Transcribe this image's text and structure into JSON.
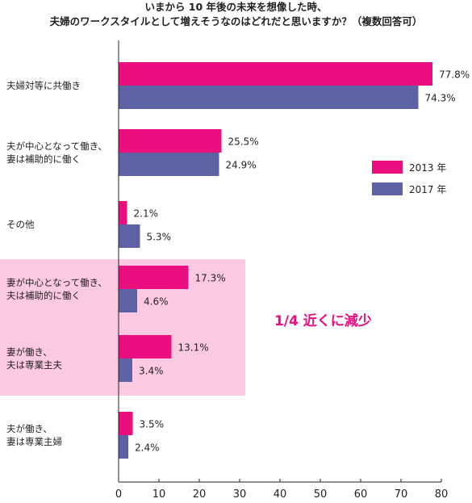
{
  "chart_data": {
    "type": "bar",
    "orientation": "horizontal",
    "title": [
      "いまから 10 年後の未来を想像した時、",
      "夫婦のワークスタイルとして増えそうなのはどれだと思いますか？（複数回答可）"
    ],
    "categories": [
      [
        "夫婦対等に共働き"
      ],
      [
        "夫が中心となって働き、",
        "妻は補助的に働く"
      ],
      [
        "その他"
      ],
      [
        "妻が中心となって働き、",
        "夫は補助的に働く"
      ],
      [
        "妻が働き、",
        "夫は専業主夫"
      ],
      [
        "夫が働き、",
        "妻は専業主婦"
      ]
    ],
    "series": [
      {
        "name": "2013 年",
        "color": "#ea0e7f",
        "values": [
          77.8,
          25.5,
          2.1,
          17.3,
          13.1,
          3.5
        ]
      },
      {
        "name": "2017 年",
        "color": "#5c62a4",
        "values": [
          74.3,
          24.9,
          5.3,
          4.6,
          3.4,
          2.4
        ]
      }
    ],
    "value_labels": [
      [
        "77.8%",
        "25.5%",
        "2.1%",
        "17.3%",
        "13.1%",
        "3.5%"
      ],
      [
        "74.3%",
        "24.9%",
        "5.3%",
        "4.6%",
        "3.4%",
        "2.4%"
      ]
    ],
    "xlim": [
      0,
      80
    ],
    "xticks": [
      "0",
      "10",
      "20",
      "30",
      "40",
      "50",
      "60",
      "70",
      "80"
    ],
    "legend_position": "right",
    "highlight": {
      "categories": [
        3,
        4
      ],
      "color": "#fcc9e2"
    },
    "annotation": {
      "text": "1/4 近くに減少",
      "color": "#ea0e7f"
    },
    "grid": false
  }
}
